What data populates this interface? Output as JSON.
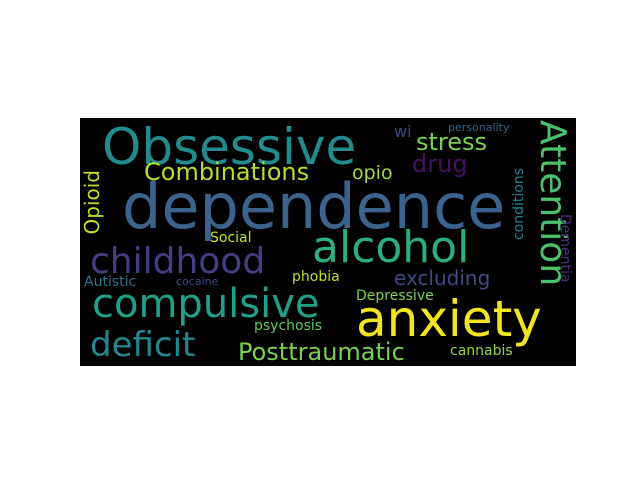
{
  "colors": {
    "background": "#000000",
    "page": "#ffffff"
  },
  "words": [
    {
      "text": "dependence",
      "color": "#3b638c"
    },
    {
      "text": "Obsessive",
      "color": "#228b8d"
    },
    {
      "text": "anxiety",
      "color": "#f2e51d"
    },
    {
      "text": "alcohol",
      "color": "#2ab07f"
    },
    {
      "text": "compulsive",
      "color": "#1fa088"
    },
    {
      "text": "childhood",
      "color": "#433e85"
    },
    {
      "text": "deficit",
      "color": "#24868e"
    },
    {
      "text": "Attention",
      "color": "#4ac16d"
    },
    {
      "text": "Combinations",
      "color": "#b8de29"
    },
    {
      "text": "Posttraumatic",
      "color": "#7ad151"
    },
    {
      "text": "stress",
      "color": "#7ad151"
    },
    {
      "text": "drug",
      "color": "#471063"
    },
    {
      "text": "opio",
      "color": "#a2da37"
    },
    {
      "text": "excluding",
      "color": "#3e4a89"
    },
    {
      "text": "Opioid",
      "color": "#bddf26"
    },
    {
      "text": "Social",
      "color": "#cae11f"
    },
    {
      "text": "phobia",
      "color": "#c2df23"
    },
    {
      "text": "Autistic",
      "color": "#2c728e"
    },
    {
      "text": "cocaine",
      "color": "#3e4989"
    },
    {
      "text": "Depressive",
      "color": "#7fd34e"
    },
    {
      "text": "psychosis",
      "color": "#5ec962"
    },
    {
      "text": "cannabis",
      "color": "#93d741"
    },
    {
      "text": "wi",
      "color": "#3f4788"
    },
    {
      "text": "personality",
      "color": "#31688e"
    },
    {
      "text": "conditions",
      "color": "#26828e"
    },
    {
      "text": "Dementia",
      "color": "#46337e"
    }
  ]
}
